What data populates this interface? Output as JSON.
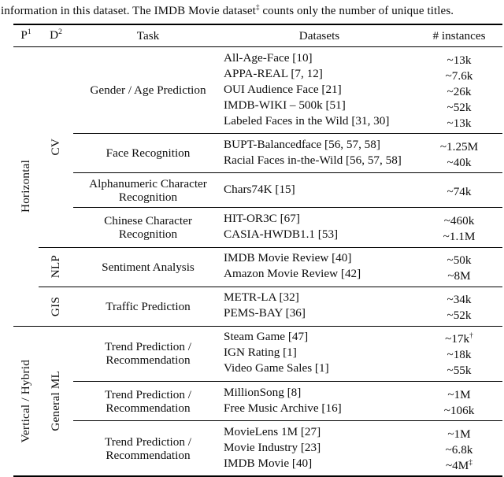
{
  "caption": {
    "before": "information in this dataset. The IMDB Movie dataset",
    "sup": "‡",
    "after": " counts only the number of unique titles."
  },
  "header": {
    "p_base": "P",
    "p_sup": "1",
    "d_base": "D",
    "d_sup": "2",
    "task": "Task",
    "datasets": "Datasets",
    "instances": "# instances"
  },
  "colors": {
    "background": "#ffffff",
    "text": "#0d0d0d",
    "rule": "#000000"
  },
  "sections": [
    {
      "p_label": "Horizontal",
      "dgroups": [
        {
          "d_label": "CV",
          "blocks": [
            {
              "task": "Gender / Age Prediction",
              "rows": [
                {
                  "dataset": "All-Age-Face [10]",
                  "instances": "~13k",
                  "sup": ""
                },
                {
                  "dataset": "APPA-REAL [7, 12]",
                  "instances": "~7.6k",
                  "sup": ""
                },
                {
                  "dataset": "OUI Audience Face [21]",
                  "instances": "~26k",
                  "sup": ""
                },
                {
                  "dataset": "IMDB-WIKI – 500k [51]",
                  "instances": "~52k",
                  "sup": ""
                },
                {
                  "dataset": "Labeled Faces in the Wild [31, 30]",
                  "instances": "~13k",
                  "sup": ""
                }
              ]
            },
            {
              "task": "Face Recognition",
              "rows": [
                {
                  "dataset": "BUPT-Balancedface [56, 57, 58]",
                  "instances": "~1.25M",
                  "sup": ""
                },
                {
                  "dataset": "Racial Faces in-the-Wild [56, 57, 58]",
                  "instances": "~40k",
                  "sup": ""
                }
              ]
            },
            {
              "task": "Alphanumeric Character Recognition",
              "rows": [
                {
                  "dataset": "Chars74K [15]",
                  "instances": "~74k",
                  "sup": ""
                }
              ]
            },
            {
              "task": "Chinese Character Recognition",
              "rows": [
                {
                  "dataset": "HIT-OR3C [67]",
                  "instances": "~460k",
                  "sup": ""
                },
                {
                  "dataset": "CASIA-HWDB1.1 [53]",
                  "instances": "~1.1M",
                  "sup": ""
                }
              ]
            }
          ]
        },
        {
          "d_label": "NLP",
          "blocks": [
            {
              "task": "Sentiment Analysis",
              "rows": [
                {
                  "dataset": "IMDB Movie Review [40]",
                  "instances": "~50k",
                  "sup": ""
                },
                {
                  "dataset": "Amazon Movie Review [42]",
                  "instances": "~8M",
                  "sup": ""
                }
              ]
            }
          ]
        },
        {
          "d_label": "GIS",
          "blocks": [
            {
              "task": "Traffic Prediction",
              "rows": [
                {
                  "dataset": "METR-LA [32]",
                  "instances": "~34k",
                  "sup": ""
                },
                {
                  "dataset": "PEMS-BAY [36]",
                  "instances": "~52k",
                  "sup": ""
                }
              ]
            }
          ]
        }
      ]
    },
    {
      "p_label": "Vertical / Hybrid",
      "dgroups": [
        {
          "d_label": "General ML",
          "blocks": [
            {
              "task": "Trend Prediction / Recommendation",
              "rows": [
                {
                  "dataset": "Steam Game [47]",
                  "instances": "~17k",
                  "sup": "†"
                },
                {
                  "dataset": "IGN Rating [1]",
                  "instances": "~18k",
                  "sup": ""
                },
                {
                  "dataset": "Video Game Sales [1]",
                  "instances": "~55k",
                  "sup": ""
                }
              ]
            },
            {
              "task": "Trend Prediction / Recommendation",
              "rows": [
                {
                  "dataset": "MillionSong [8]",
                  "instances": "~1M",
                  "sup": ""
                },
                {
                  "dataset": "Free Music Archive [16]",
                  "instances": "~106k",
                  "sup": ""
                }
              ]
            },
            {
              "task": "Trend Prediction / Recommendation",
              "rows": [
                {
                  "dataset": "MovieLens 1M [27]",
                  "instances": "~1M",
                  "sup": ""
                },
                {
                  "dataset": "Movie Industry [23]",
                  "instances": "~6.8k",
                  "sup": ""
                },
                {
                  "dataset": "IMDB Movie [40]",
                  "instances": "~4M",
                  "sup": "‡"
                }
              ]
            }
          ]
        }
      ]
    }
  ]
}
